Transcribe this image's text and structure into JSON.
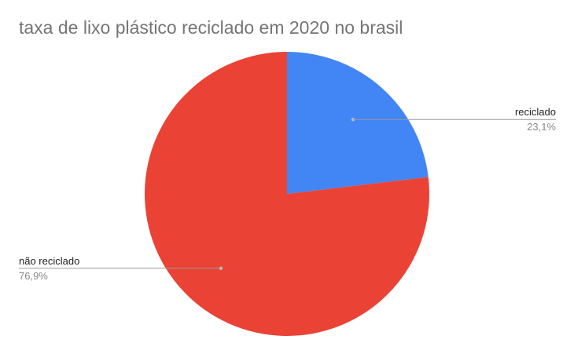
{
  "chart_data": {
    "type": "pie",
    "title": "taxa de lixo plástico reciclado em 2020 no brasil",
    "legend": "none",
    "slices": [
      {
        "name": "reciclado",
        "value": 23.1,
        "value_label": "23,1%",
        "color": "#4285f4",
        "label_side": "right"
      },
      {
        "name": "não reciclado",
        "value": 76.9,
        "value_label": "76,9%",
        "color": "#ea4335",
        "label_side": "left"
      }
    ]
  }
}
